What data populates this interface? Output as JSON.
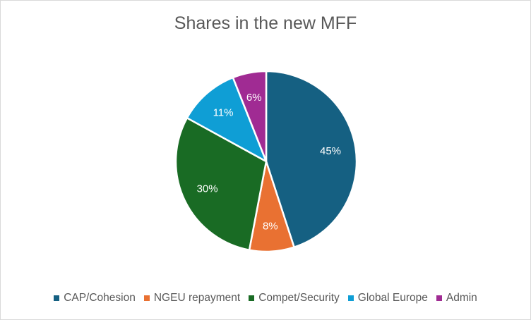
{
  "chart_data": {
    "type": "pie",
    "title": "Shares in the new MFF",
    "categories": [
      "CAP/Cohesion",
      "NGEU repayment",
      "Compet/Security",
      "Global Europe",
      "Admin"
    ],
    "values": [
      45,
      8,
      30,
      11,
      6
    ],
    "data_labels": [
      "45%",
      "8%",
      "30%",
      "11%",
      "6%"
    ],
    "colors": [
      "#156082",
      "#e97132",
      "#196b24",
      "#0f9ed5",
      "#a02b93"
    ],
    "start_angle": "12 o'clock, clockwise",
    "legend_position": "bottom"
  }
}
